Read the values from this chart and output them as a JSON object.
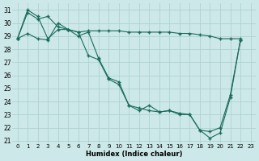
{
  "xlabel": "Humidex (Indice chaleur)",
  "bg_color": "#cce8e8",
  "line_color": "#1a6b5a",
  "grid_color": "#aacece",
  "xlim": [
    -0.5,
    23.5
  ],
  "ylim": [
    20.8,
    31.5
  ],
  "yticks": [
    21,
    22,
    23,
    24,
    25,
    26,
    27,
    28,
    29,
    30,
    31
  ],
  "xticks": [
    0,
    1,
    2,
    3,
    4,
    5,
    6,
    7,
    8,
    9,
    10,
    11,
    12,
    13,
    14,
    15,
    16,
    17,
    18,
    19,
    20,
    21,
    22,
    23
  ],
  "series": [
    {
      "x": [
        0,
        1,
        2,
        3,
        4,
        5,
        6,
        7,
        8,
        9,
        10,
        11,
        12,
        13,
        14,
        15,
        16,
        17,
        18,
        19,
        20,
        21,
        22
      ],
      "y": [
        28.8,
        31.0,
        30.5,
        28.8,
        29.5,
        29.5,
        29.3,
        27.5,
        27.2,
        25.7,
        25.3,
        23.7,
        23.3,
        23.7,
        23.2,
        23.3,
        23.0,
        23.0,
        21.8,
        21.2,
        21.6,
        24.3,
        28.7
      ]
    },
    {
      "x": [
        0,
        1,
        2,
        3,
        4,
        5,
        6,
        7,
        8,
        9,
        10,
        11,
        12,
        13,
        14,
        15,
        16,
        17,
        18,
        19,
        20,
        21,
        22
      ],
      "y": [
        28.8,
        29.2,
        28.8,
        28.7,
        30.0,
        29.5,
        29.0,
        29.3,
        27.3,
        25.8,
        25.5,
        23.7,
        23.5,
        23.3,
        23.2,
        23.3,
        23.1,
        23.0,
        21.8,
        21.7,
        22.0,
        24.5,
        28.7
      ]
    },
    {
      "x": [
        0,
        1,
        2,
        3,
        4,
        5,
        6,
        7,
        8,
        9,
        10,
        11,
        12,
        13,
        14,
        15,
        16,
        17,
        18,
        19,
        20,
        21,
        22
      ],
      "y": [
        28.8,
        30.8,
        30.3,
        30.5,
        29.7,
        29.5,
        29.3,
        29.4,
        29.4,
        29.4,
        29.4,
        29.3,
        29.3,
        29.3,
        29.3,
        29.3,
        29.2,
        29.2,
        29.1,
        29.0,
        28.8,
        28.8,
        28.8
      ]
    }
  ]
}
